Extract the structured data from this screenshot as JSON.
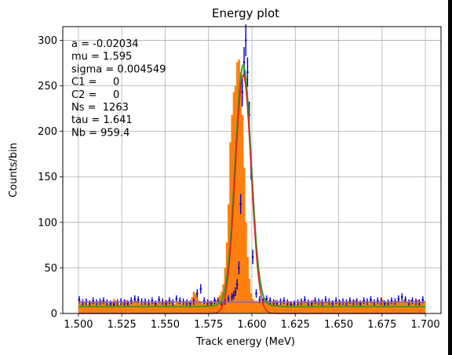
{
  "chart_data": {
    "type": "bar",
    "title": "Energy plot",
    "xlabel": "Track energy (MeV)",
    "ylabel": "Counts/bin",
    "xlim": [
      1.491,
      1.709
    ],
    "ylim": [
      0,
      315
    ],
    "grid": true,
    "xticks": [
      "1.500",
      "1.525",
      "1.550",
      "1.575",
      "1.600",
      "1.625",
      "1.650",
      "1.675",
      "1.700"
    ],
    "yticks": [
      "0",
      "50",
      "100",
      "150",
      "200",
      "250",
      "300"
    ],
    "fit_params": [
      "a = -0.02034",
      "mu = 1.595",
      "sigma = 0.004549",
      "C1 =     0",
      "C2 =     0",
      "Ns =  1263",
      "tau = 1.641",
      "Nb = 959.4"
    ],
    "bin_start": 1.5,
    "bin_width": 0.001,
    "values": [
      14,
      11,
      12,
      13,
      12,
      10,
      14,
      13,
      11,
      12,
      9,
      12,
      13,
      14,
      11,
      12,
      10,
      11,
      12,
      13,
      16,
      14,
      12,
      10,
      11,
      12,
      13,
      15,
      12,
      11,
      12,
      13,
      16,
      14,
      12,
      11,
      10,
      12,
      13,
      11,
      12,
      11,
      13,
      12,
      10,
      11,
      12,
      13,
      14,
      12,
      15,
      13,
      12,
      14,
      11,
      10,
      12,
      13,
      14,
      11,
      12,
      13,
      14,
      13,
      12,
      18,
      24,
      22,
      17,
      14,
      12,
      11,
      13,
      12,
      11,
      14,
      13,
      12,
      16,
      15,
      18,
      20,
      24,
      32,
      50,
      78,
      120,
      188,
      218,
      243,
      250,
      276,
      279,
      265,
      218,
      160,
      100,
      62,
      38,
      22,
      16,
      12,
      14,
      13,
      15,
      12,
      11,
      17,
      12,
      14,
      11,
      13,
      12,
      15,
      13,
      10,
      14,
      12,
      13,
      11,
      14,
      12,
      13,
      11,
      12,
      10,
      13,
      12,
      11,
      14,
      12,
      13,
      12,
      11,
      13,
      15,
      11,
      12,
      10,
      14,
      12,
      13,
      11,
      12,
      13,
      12,
      14,
      11,
      12,
      13,
      14,
      12,
      10,
      13,
      11,
      12,
      13,
      12,
      14,
      15,
      11,
      12,
      13,
      12,
      14,
      13,
      12,
      11,
      16,
      13,
      12,
      11,
      14,
      13,
      18,
      15,
      13,
      12,
      14,
      13,
      11,
      12,
      13,
      14,
      17,
      13,
      12,
      15,
      11,
      12,
      12,
      15,
      13,
      11,
      14,
      15,
      12,
      13,
      13,
      14
    ],
    "data_points": {
      "x": [
        1.5005,
        1.5025,
        1.5045,
        1.5065,
        1.5085,
        1.5105,
        1.5125,
        1.5145,
        1.5165,
        1.5185,
        1.5205,
        1.5225,
        1.5245,
        1.5265,
        1.5285,
        1.5305,
        1.5325,
        1.5345,
        1.5365,
        1.5385,
        1.5405,
        1.5425,
        1.5445,
        1.5465,
        1.5485,
        1.5505,
        1.5525,
        1.5545,
        1.5565,
        1.5585,
        1.5605,
        1.5625,
        1.5645,
        1.5665,
        1.5685,
        1.5705,
        1.5725,
        1.5745,
        1.5765,
        1.5785,
        1.5805,
        1.5825,
        1.5845,
        1.5865,
        1.5885,
        1.5895,
        1.5905,
        1.5915,
        1.5925,
        1.5935,
        1.5945,
        1.5955,
        1.5965,
        1.5975,
        1.5985,
        1.5995,
        1.6005,
        1.6025,
        1.6045,
        1.6065,
        1.6085,
        1.6105,
        1.6125,
        1.6145,
        1.6165,
        1.6185,
        1.6205,
        1.6225,
        1.6245,
        1.6265,
        1.6285,
        1.6305,
        1.6325,
        1.6345,
        1.6365,
        1.6385,
        1.6405,
        1.6425,
        1.6445,
        1.6465,
        1.6485,
        1.6505,
        1.6525,
        1.6545,
        1.6565,
        1.6585,
        1.6605,
        1.6625,
        1.6645,
        1.6665,
        1.6685,
        1.6705,
        1.6725,
        1.6745,
        1.6765,
        1.6785,
        1.6805,
        1.6825,
        1.6845,
        1.6865,
        1.6885,
        1.6905,
        1.6925,
        1.6945,
        1.6965,
        1.6985
      ],
      "y": [
        15,
        12,
        13,
        11,
        14,
        12,
        13,
        14,
        12,
        11,
        10,
        12,
        13,
        12,
        11,
        14,
        16,
        15,
        13,
        13,
        12,
        14,
        11,
        15,
        13,
        11,
        14,
        12,
        16,
        14,
        13,
        12,
        11,
        13,
        22,
        27,
        14,
        12,
        11,
        14,
        13,
        12,
        13,
        16,
        18,
        20,
        24,
        32,
        50,
        120,
        243,
        276,
        300,
        265,
        218,
        160,
        62,
        22,
        15,
        13,
        16,
        14,
        12,
        11,
        13,
        14,
        12,
        10,
        11,
        12,
        13,
        15,
        12,
        11,
        14,
        13,
        12,
        15,
        13,
        11,
        14,
        12,
        13,
        12,
        14,
        12,
        13,
        11,
        14,
        13,
        15,
        12,
        14,
        13,
        11,
        12,
        14,
        13,
        16,
        18,
        15,
        12,
        14,
        13,
        12,
        15
      ]
    },
    "series": [
      {
        "name": "",
        "color": "#ff7f0e",
        "kind": "histogram"
      },
      {
        "name": "",
        "color": "#0000cc",
        "kind": "data points with error bars"
      },
      {
        "name": "",
        "color": "#2ca02c",
        "kind": "total fit"
      },
      {
        "name": "",
        "color": "#d62728",
        "kind": "signal fit"
      },
      {
        "name": "",
        "color": "#8c6bb1",
        "kind": "background fit"
      }
    ]
  }
}
